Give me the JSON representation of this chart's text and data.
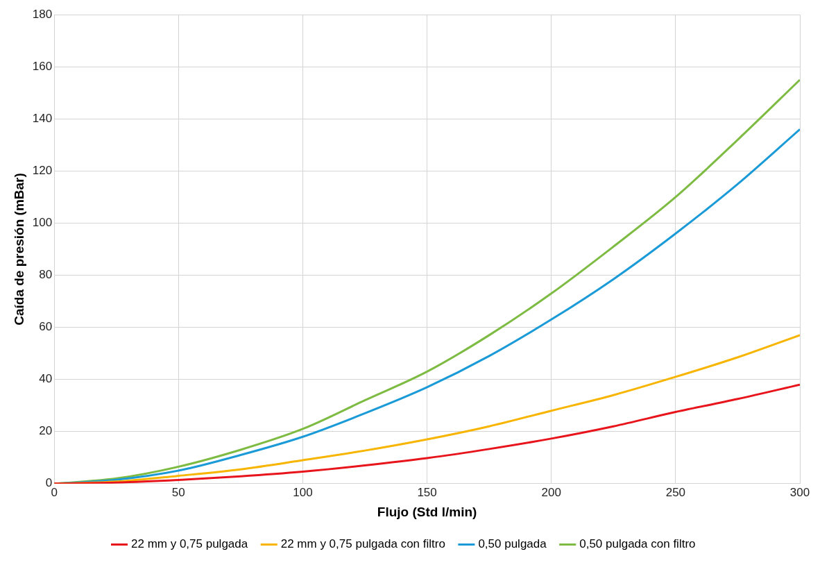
{
  "chart_data": {
    "type": "line",
    "xlabel": "Flujo (Std l/min)",
    "ylabel": "Caída de presión (mBar)",
    "x": [
      0,
      25,
      50,
      75,
      100,
      125,
      150,
      175,
      200,
      225,
      250,
      275,
      300
    ],
    "xlim": [
      0,
      300
    ],
    "xticks": [
      0,
      50,
      100,
      150,
      200,
      250,
      300
    ],
    "ylim": [
      0,
      180
    ],
    "yticks": [
      0,
      20,
      40,
      60,
      80,
      100,
      120,
      140,
      160,
      180
    ],
    "grid": true,
    "legend": "bottom",
    "marker": "none",
    "line_style": "solid",
    "series": [
      {
        "name": "22 mm y 0,75 pulgada",
        "color": "#e8141b",
        "values": [
          0,
          0.4,
          1.4,
          2.8,
          4.6,
          7,
          9.8,
          13.3,
          17.3,
          22,
          27.5,
          32.5,
          38
        ]
      },
      {
        "name": "22 mm y 0,75 pulgada con filtro",
        "color": "#f7b500",
        "values": [
          0,
          0.8,
          3,
          5.5,
          9,
          12.7,
          17,
          22,
          28,
          34,
          41,
          48.5,
          57
        ]
      },
      {
        "name": "0,50 pulgada",
        "color": "#1a9ad6",
        "values": [
          0,
          1.5,
          5,
          11,
          18,
          27,
          37,
          49,
          63,
          78.5,
          96,
          115,
          136
        ]
      },
      {
        "name": "0,50 pulgada con filtro",
        "color": "#7dbb42",
        "values": [
          0,
          2,
          6.5,
          13,
          21,
          32,
          43,
          57,
          73,
          91,
          110,
          132,
          155
        ]
      }
    ]
  }
}
